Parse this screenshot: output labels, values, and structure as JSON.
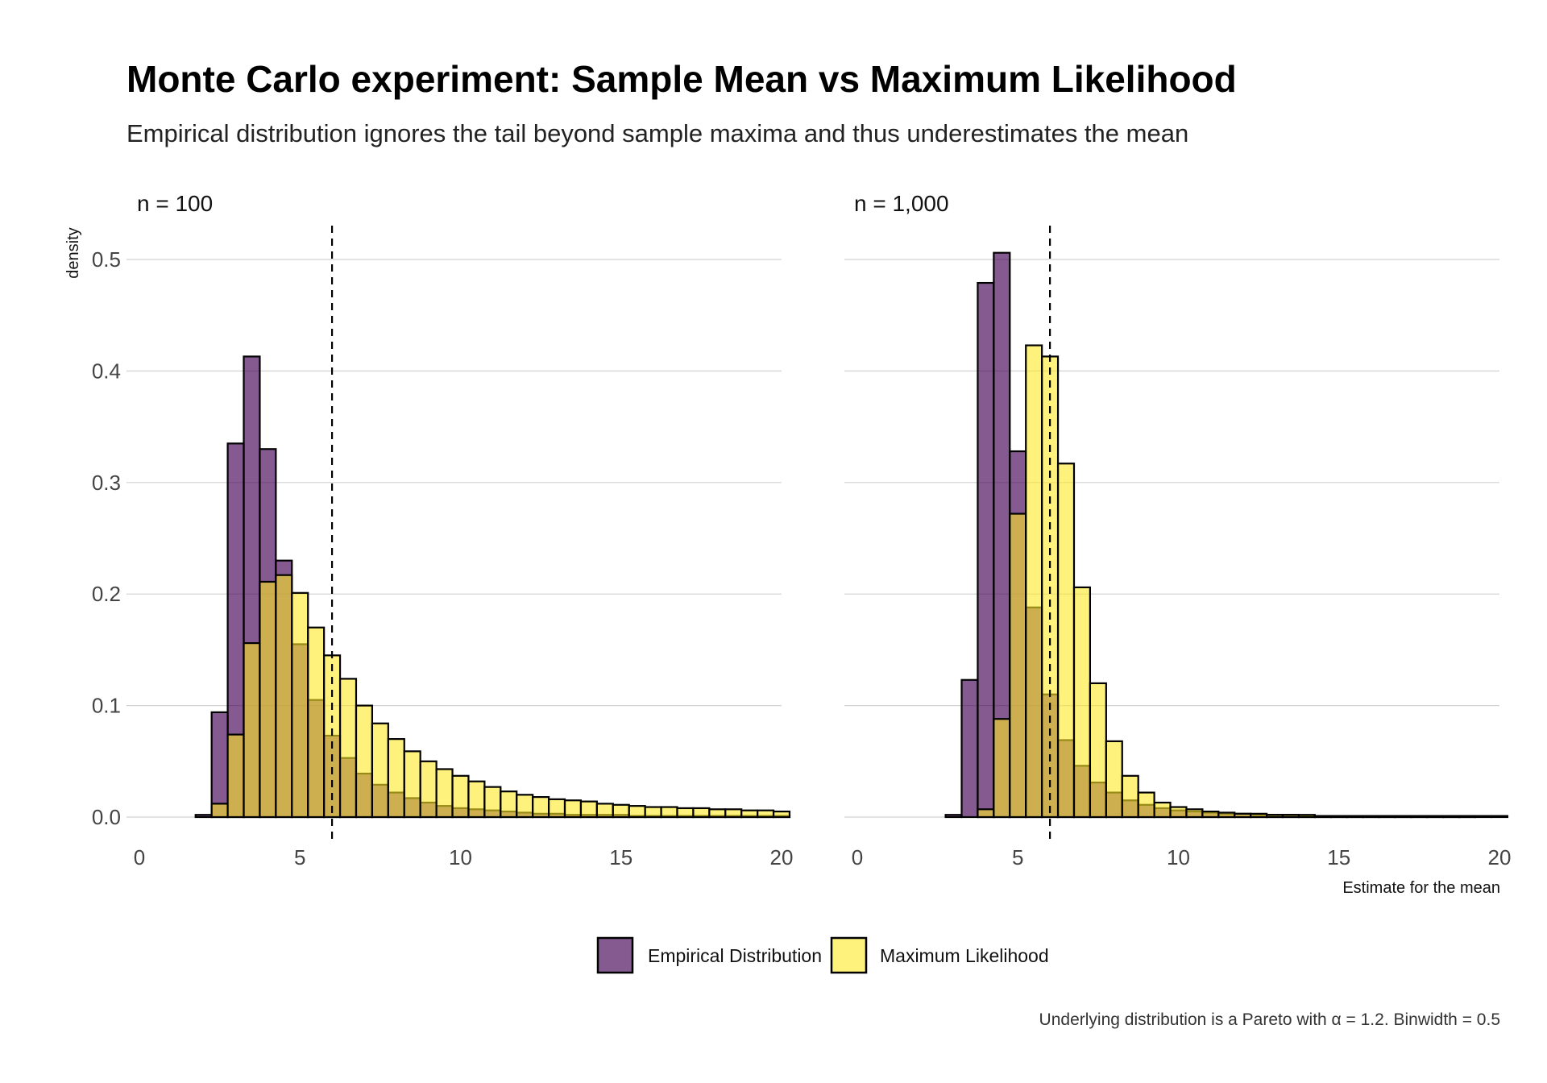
{
  "title": "Monte Carlo experiment: Sample Mean vs Maximum Likelihood",
  "subtitle": "Empirical distribution ignores the tail beyond sample maxima and thus underestimates the mean",
  "caption": "Underlying distribution is a Pareto with α = 1.2. Binwidth = 0.5",
  "colors": {
    "empirical": "#440154",
    "ml": "#FDE725",
    "outline": "#000000",
    "reference_line": "#000000"
  },
  "legend": {
    "placement": "bottom",
    "entries": [
      {
        "key": "empirical",
        "label": "Empirical Distribution"
      },
      {
        "key": "ml",
        "label": "Maximum Likelihood"
      }
    ]
  },
  "chart_data": [
    {
      "type": "bar",
      "panel": "n = 100",
      "xlabel": "",
      "ylabel": "density",
      "xlim": [
        0,
        20
      ],
      "ylim": [
        0,
        0.5
      ],
      "xticks": [
        0,
        5,
        10,
        15,
        20
      ],
      "yticks": [
        0.0,
        0.1,
        0.2,
        0.3,
        0.4,
        0.5
      ],
      "xtick_labels": [
        "0",
        "5",
        "10",
        "15",
        "20"
      ],
      "ytick_labels": [
        "0.0",
        "0.1",
        "0.2",
        "0.3",
        "0.4",
        "0.5"
      ],
      "reference_line_x": 6,
      "binwidth": 0.5,
      "bin_start": 0.25,
      "series": [
        {
          "key": "empirical",
          "name": "Empirical Distribution",
          "values": [
            0,
            0,
            0,
            0.002,
            0.094,
            0.335,
            0.413,
            0.33,
            0.23,
            0.155,
            0.105,
            0.073,
            0.053,
            0.039,
            0.029,
            0.022,
            0.017,
            0.013,
            0.01,
            0.008,
            0.007,
            0.006,
            0.005,
            0.004,
            0.003,
            0.003,
            0.002,
            0.002,
            0.002,
            0.002,
            0.001,
            0.001,
            0.001,
            0.001,
            0.001,
            0.001,
            0.001,
            0.001,
            0.001,
            0.001
          ]
        },
        {
          "key": "ml",
          "name": "Maximum Likelihood",
          "values": [
            0,
            0,
            0,
            0,
            0.012,
            0.074,
            0.156,
            0.211,
            0.217,
            0.201,
            0.17,
            0.145,
            0.124,
            0.1,
            0.084,
            0.07,
            0.059,
            0.05,
            0.043,
            0.037,
            0.032,
            0.027,
            0.023,
            0.02,
            0.018,
            0.016,
            0.015,
            0.014,
            0.012,
            0.011,
            0.01,
            0.009,
            0.009,
            0.008,
            0.008,
            0.007,
            0.007,
            0.006,
            0.006,
            0.005
          ]
        }
      ]
    },
    {
      "type": "bar",
      "panel": "n = 1,000",
      "xlabel": "Estimate for the mean",
      "ylabel": "",
      "xlim": [
        0,
        20
      ],
      "ylim": [
        0,
        0.5
      ],
      "xticks": [
        0,
        5,
        10,
        15,
        20
      ],
      "xtick_labels": [
        "0",
        "5",
        "10",
        "15",
        "20"
      ],
      "reference_line_x": 6,
      "binwidth": 0.5,
      "bin_start": 0.25,
      "series": [
        {
          "key": "empirical",
          "name": "Empirical Distribution",
          "values": [
            0,
            0,
            0,
            0,
            0,
            0.002,
            0.123,
            0.479,
            0.506,
            0.328,
            0.188,
            0.11,
            0.069,
            0.046,
            0.031,
            0.022,
            0.015,
            0.011,
            0.008,
            0.006,
            0.005,
            0.004,
            0.003,
            0.003,
            0.002,
            0.002,
            0.002,
            0.001,
            0.001,
            0.001,
            0.001,
            0.001,
            0.001,
            0.001,
            0.001,
            0.001,
            0.001,
            0.001,
            0,
            0
          ]
        },
        {
          "key": "ml",
          "name": "Maximum Likelihood",
          "values": [
            0,
            0,
            0,
            0,
            0,
            0,
            0,
            0.007,
            0.088,
            0.272,
            0.423,
            0.413,
            0.317,
            0.206,
            0.12,
            0.068,
            0.037,
            0.022,
            0.013,
            0.009,
            0.007,
            0.005,
            0.004,
            0.003,
            0.003,
            0.002,
            0.002,
            0.002,
            0.001,
            0.001,
            0.001,
            0.001,
            0.001,
            0.001,
            0.001,
            0.001,
            0.001,
            0.001,
            0.001,
            0.001
          ]
        }
      ]
    }
  ]
}
